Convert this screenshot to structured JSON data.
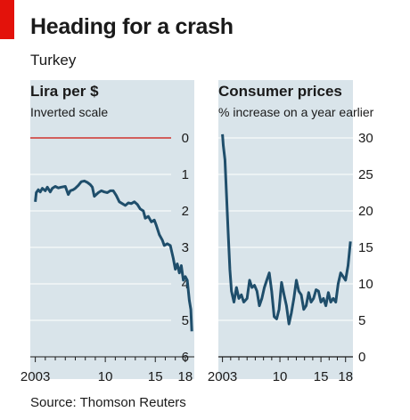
{
  "header": {
    "title": "Heading for a crash",
    "subtitle": "Turkey"
  },
  "footer": {
    "source": "Source: Thomson Reuters"
  },
  "colors": {
    "panel_bg": "#d9e4ea",
    "grid": "#ffffff",
    "series": "#1f4e6b",
    "zero_line": "#d0312d",
    "accent": "#e3120b"
  },
  "chart_data": [
    {
      "type": "line",
      "title": "Lira per $",
      "subtitle": "Inverted scale",
      "y_inverted": true,
      "ylim": [
        0,
        6
      ],
      "y_ticks": [
        "0",
        "1",
        "2",
        "3",
        "4",
        "5",
        "6"
      ],
      "x_ticks": [
        "2003",
        "10",
        "15",
        "18"
      ],
      "xlim": [
        2002.5,
        2018.9
      ],
      "grid": true,
      "highlight_line_at": 0,
      "series": [
        {
          "x": [
            2003.0,
            2003.1,
            2003.3,
            2003.5,
            2003.7,
            2004.0,
            2004.2,
            2004.5,
            2004.7,
            2005.0,
            2005.3,
            2005.6,
            2006.0,
            2006.3,
            2006.5,
            2006.8,
            2007.0,
            2007.3,
            2007.6,
            2007.9,
            2008.2,
            2008.5,
            2008.7,
            2008.9,
            2009.1,
            2009.3,
            2009.6,
            2009.9,
            2010.2,
            2010.5,
            2010.8,
            2011.1,
            2011.4,
            2011.7,
            2012.0,
            2012.3,
            2012.6,
            2012.9,
            2013.2,
            2013.5,
            2013.8,
            2014.0,
            2014.3,
            2014.6,
            2014.9,
            2015.1,
            2015.4,
            2015.7,
            2015.9,
            2016.2,
            2016.5,
            2016.8,
            2017.0,
            2017.2,
            2017.4,
            2017.6,
            2017.8,
            2018.0,
            2018.2,
            2018.4,
            2018.55,
            2018.65
          ],
          "values": [
            1.75,
            1.5,
            1.42,
            1.48,
            1.38,
            1.45,
            1.35,
            1.48,
            1.38,
            1.33,
            1.37,
            1.35,
            1.33,
            1.55,
            1.45,
            1.42,
            1.38,
            1.3,
            1.2,
            1.18,
            1.22,
            1.28,
            1.35,
            1.6,
            1.55,
            1.5,
            1.45,
            1.48,
            1.5,
            1.45,
            1.45,
            1.58,
            1.75,
            1.8,
            1.85,
            1.78,
            1.8,
            1.75,
            1.82,
            1.95,
            2.0,
            2.2,
            2.15,
            2.3,
            2.25,
            2.4,
            2.65,
            2.8,
            2.95,
            2.9,
            2.95,
            3.3,
            3.6,
            3.45,
            3.7,
            3.5,
            3.9,
            3.8,
            3.9,
            4.45,
            4.7,
            5.3
          ]
        }
      ]
    },
    {
      "type": "line",
      "title": "Consumer prices",
      "subtitle": "% increase on a year earlier",
      "ylim": [
        0,
        30
      ],
      "y_ticks": [
        "0",
        "5",
        "10",
        "15",
        "20",
        "25",
        "30"
      ],
      "x_ticks": [
        "2003",
        "10",
        "15",
        "18"
      ],
      "xlim": [
        2002.5,
        2018.9
      ],
      "grid": true,
      "series": [
        {
          "x": [
            2003.0,
            2003.1,
            2003.3,
            2003.5,
            2003.7,
            2003.9,
            2004.1,
            2004.4,
            2004.7,
            2005.0,
            2005.3,
            2005.6,
            2006.0,
            2006.3,
            2006.6,
            2006.9,
            2007.2,
            2007.5,
            2007.8,
            2008.1,
            2008.4,
            2008.7,
            2009.0,
            2009.3,
            2009.6,
            2009.9,
            2010.2,
            2010.5,
            2010.8,
            2011.1,
            2011.4,
            2011.7,
            2012.0,
            2012.3,
            2012.6,
            2012.9,
            2013.2,
            2013.5,
            2013.8,
            2014.1,
            2014.4,
            2014.7,
            2015.0,
            2015.3,
            2015.6,
            2015.9,
            2016.2,
            2016.5,
            2016.8,
            2017.1,
            2017.4,
            2017.7,
            2018.0,
            2018.3,
            2018.6
          ],
          "values": [
            30.5,
            29.0,
            27.0,
            22.0,
            17.0,
            12.0,
            9.0,
            7.5,
            9.5,
            8.0,
            8.5,
            7.5,
            8.0,
            10.5,
            9.5,
            9.8,
            9.0,
            7.0,
            8.0,
            9.5,
            10.5,
            11.5,
            9.0,
            5.5,
            5.2,
            6.5,
            10.2,
            8.5,
            7.0,
            4.5,
            6.0,
            8.0,
            10.5,
            9.0,
            8.5,
            6.5,
            7.0,
            8.8,
            7.5,
            8.0,
            9.2,
            9.0,
            7.5,
            8.0,
            7.0,
            8.8,
            7.5,
            8.0,
            7.5,
            10.0,
            11.5,
            11.0,
            10.5,
            12.5,
            15.8
          ]
        }
      ]
    }
  ]
}
